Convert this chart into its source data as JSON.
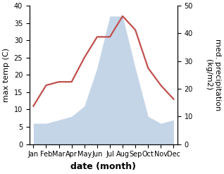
{
  "months": [
    "Jan",
    "Feb",
    "Mar",
    "Apr",
    "May",
    "Jun",
    "Jul",
    "Aug",
    "Sep",
    "Oct",
    "Nov",
    "Dec"
  ],
  "temperature": [
    11,
    17,
    18,
    18,
    25,
    31,
    31,
    37,
    33,
    22,
    17,
    13
  ],
  "precipitation_left_scale": [
    6,
    6,
    7,
    8,
    11,
    22,
    37,
    37,
    22,
    8,
    6,
    7
  ],
  "temp_color": "#c0504d",
  "precip_color": "#c5d5e8",
  "temp_ylim": [
    0,
    40
  ],
  "precip_ylim": [
    0,
    50
  ],
  "left_ylim": [
    0,
    40
  ],
  "xlabel": "date (month)",
  "ylabel_left": "max temp (C)",
  "ylabel_right": "med. precipitation\n(kg/m2)",
  "xlabel_fontsize": 9,
  "ylabel_fontsize": 8,
  "tick_fontsize": 7,
  "xlabel_fontweight": "bold",
  "linewidth": 1.6
}
